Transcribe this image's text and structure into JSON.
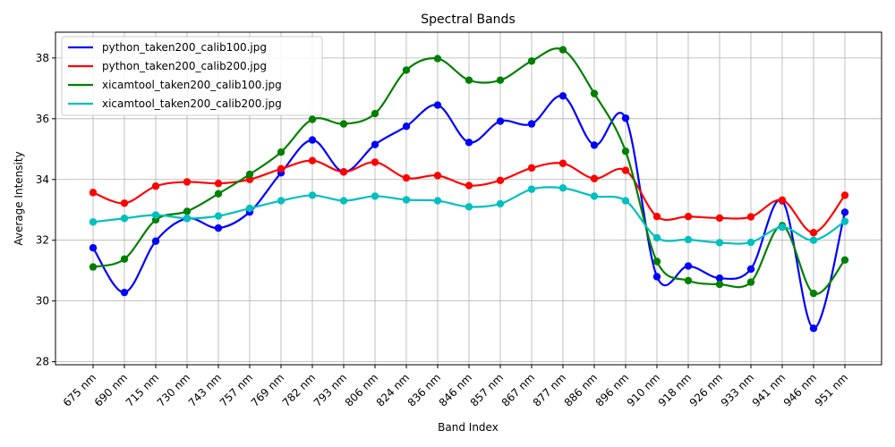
{
  "chart_data": {
    "type": "line",
    "title": "Spectral Bands",
    "xlabel": "Band Index",
    "ylabel": "Average Intensity",
    "grid": true,
    "legend_position": "top-left",
    "ylim": [
      27.9,
      38.85
    ],
    "yticks": [
      28,
      30,
      32,
      34,
      36,
      38
    ],
    "categories": [
      "675 nm",
      "690 nm",
      "715 nm",
      "730 nm",
      "743 nm",
      "757 nm",
      "769 nm",
      "782 nm",
      "793 nm",
      "806 nm",
      "824 nm",
      "836 nm",
      "846 nm",
      "857 nm",
      "867 nm",
      "877 nm",
      "886 nm",
      "896 nm",
      "910 nm",
      "918 nm",
      "926 nm",
      "933 nm",
      "941 nm",
      "946 nm",
      "951 nm"
    ],
    "series": [
      {
        "name": "python_taken200_calib100.jpg",
        "color": "#0000ff",
        "values": [
          31.75,
          30.28,
          31.97,
          32.72,
          32.4,
          32.93,
          34.22,
          35.3,
          34.25,
          35.15,
          35.75,
          36.45,
          35.22,
          35.92,
          35.83,
          36.75,
          35.13,
          36.02,
          30.8,
          31.15,
          30.75,
          31.05,
          33.3,
          29.1,
          32.92
        ]
      },
      {
        "name": "python_taken200_calib200.jpg",
        "color": "#ff0000",
        "values": [
          33.57,
          33.22,
          33.78,
          33.92,
          33.87,
          34.0,
          34.35,
          34.62,
          34.25,
          34.57,
          34.05,
          34.13,
          33.8,
          33.97,
          34.38,
          34.53,
          34.03,
          34.3,
          32.78,
          32.78,
          32.73,
          32.77,
          33.32,
          32.25,
          33.48
        ]
      },
      {
        "name": "xicamtool_taken200_calib100.jpg",
        "color": "#008000",
        "values": [
          31.12,
          31.38,
          32.67,
          32.95,
          33.53,
          34.17,
          34.9,
          35.98,
          35.83,
          36.17,
          37.6,
          37.98,
          37.27,
          37.27,
          37.9,
          38.27,
          36.83,
          34.93,
          31.3,
          30.67,
          30.55,
          30.62,
          32.48,
          30.25,
          31.35
        ]
      },
      {
        "name": "xicamtool_taken200_calib200.jpg",
        "color": "#00bfbf",
        "values": [
          32.6,
          32.72,
          32.83,
          32.72,
          32.8,
          33.05,
          33.3,
          33.48,
          33.3,
          33.45,
          33.33,
          33.3,
          33.1,
          33.2,
          33.68,
          33.72,
          33.45,
          33.3,
          32.08,
          32.02,
          31.92,
          31.93,
          32.43,
          32.0,
          32.62
        ]
      }
    ]
  }
}
